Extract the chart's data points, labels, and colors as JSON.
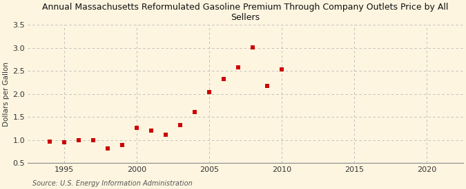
{
  "title": "Annual Massachusetts Reformulated Gasoline Premium Through Company Outlets Price by All\nSellers",
  "ylabel": "Dollars per Gallon",
  "source": "Source: U.S. Energy Information Administration",
  "background_color": "#fdf5e0",
  "plot_bg_color": "#fdf5e0",
  "grid_color": "#b0b0b0",
  "marker_color": "#cc0000",
  "xlim": [
    1992.5,
    2022.5
  ],
  "ylim": [
    0.5,
    3.5
  ],
  "xticks": [
    1995,
    2000,
    2005,
    2010,
    2015,
    2020
  ],
  "yticks": [
    0.5,
    1.0,
    1.5,
    2.0,
    2.5,
    3.0,
    3.5
  ],
  "years": [
    1994,
    1995,
    1996,
    1997,
    1998,
    1999,
    2000,
    2001,
    2002,
    2003,
    2004,
    2005,
    2006,
    2007,
    2008,
    2009,
    2010
  ],
  "values": [
    0.97,
    0.95,
    1.0,
    1.0,
    0.82,
    0.9,
    1.27,
    1.21,
    1.11,
    1.32,
    1.61,
    2.04,
    2.33,
    2.58,
    3.01,
    2.18,
    2.54
  ]
}
